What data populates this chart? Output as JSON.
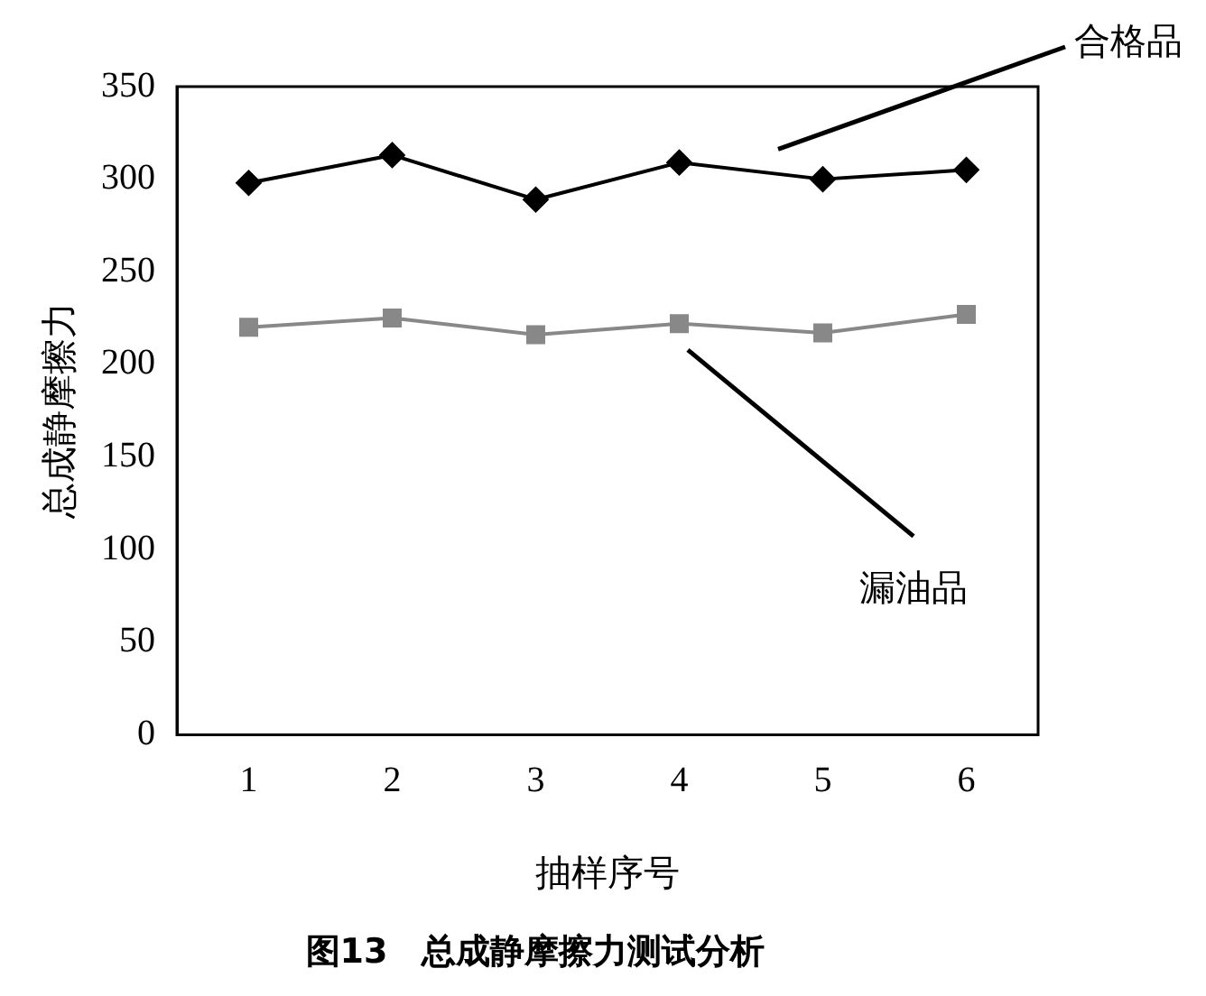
{
  "chart_data": {
    "type": "line",
    "title": "图13　总成静摩擦力测试分析",
    "xlabel": "抽样序号",
    "ylabel": "总成静摩擦力",
    "categories": [
      "1",
      "2",
      "3",
      "4",
      "5",
      "6"
    ],
    "series": [
      {
        "name": "合格品",
        "color": "#000000",
        "marker": "diamond",
        "values": [
          298,
          313,
          289,
          309,
          300,
          305
        ]
      },
      {
        "name": "漏油品",
        "color": "#888888",
        "marker": "square",
        "values": [
          220,
          225,
          216,
          222,
          217,
          227
        ]
      }
    ],
    "ylim": [
      0,
      350
    ],
    "yticks": [
      0,
      50,
      100,
      150,
      200,
      250,
      300,
      350
    ],
    "grid": false,
    "legend": false
  }
}
